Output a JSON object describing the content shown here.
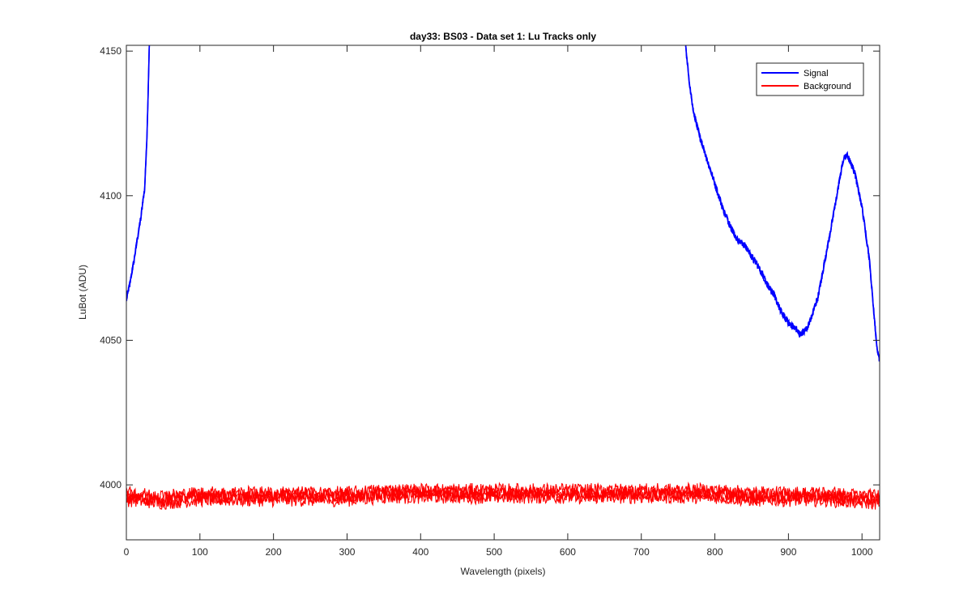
{
  "chart_data": {
    "type": "line",
    "title": "day33: BS03 - Data set 1: Lu Tracks only",
    "xlabel": "Wavelength (pixels)",
    "ylabel": "LuBot (ADU)",
    "xlim": [
      0,
      1024
    ],
    "ylim": [
      3981,
      4152
    ],
    "x_ticks": [
      0,
      100,
      200,
      300,
      400,
      500,
      600,
      700,
      800,
      900,
      1000
    ],
    "y_ticks": [
      4000,
      4050,
      4100,
      4150
    ],
    "grid": false,
    "legend_position": "top-right",
    "series": [
      {
        "name": "Signal",
        "color": "#0000ff",
        "segments": [
          {
            "x": [
              0,
              5,
              10,
              15,
              20,
              25,
              28,
              30,
              32
            ],
            "y": [
              4064,
              4070,
              4077,
              4085,
              4093,
              4103,
              4120,
              4140,
              4160
            ]
          },
          {
            "x": [
              760,
              765,
              770,
              780,
              790,
              800,
              810,
              820,
              830,
              840,
              850,
              860,
              870,
              880,
              890,
              900,
              910,
              915,
              920,
              925,
              930,
              940,
              950,
              960,
              970,
              975,
              980,
              985,
              990,
              1000,
              1010,
              1015,
              1020,
              1024
            ],
            "y": [
              4152,
              4140,
              4130,
              4120,
              4112,
              4104,
              4096,
              4090,
              4085,
              4083,
              4079,
              4075,
              4070,
              4066,
              4060,
              4056,
              4054,
              4052,
              4053,
              4054,
              4057,
              4065,
              4078,
              4092,
              4106,
              4113,
              4114,
              4111,
              4108,
              4096,
              4078,
              4063,
              4048,
              4043
            ]
          }
        ]
      },
      {
        "name": "Background",
        "color": "#ff0000",
        "band": {
          "x": [
            0,
            50,
            100,
            150,
            200,
            250,
            300,
            350,
            400,
            450,
            500,
            550,
            600,
            650,
            700,
            750,
            800,
            850,
            900,
            950,
            1000,
            1024
          ],
          "y": [
            3996,
            3995,
            3996,
            3996,
            3996,
            3996,
            3996,
            3997,
            3997,
            3997,
            3997,
            3997,
            3997,
            3997,
            3997,
            3997,
            3997,
            3996,
            3996,
            3996,
            3995,
            3995
          ],
          "spread": 3
        }
      }
    ]
  }
}
